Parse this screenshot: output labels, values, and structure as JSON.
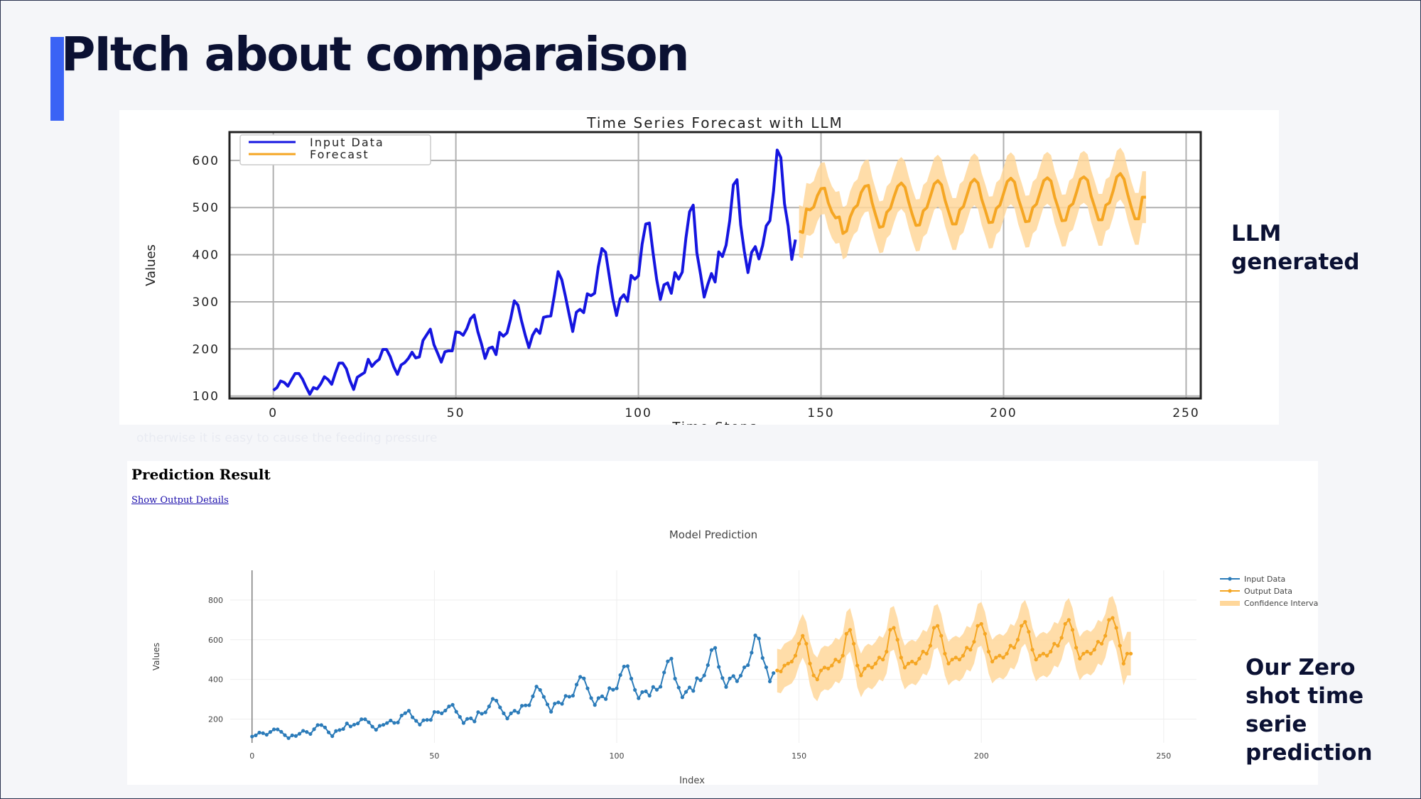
{
  "slide": {
    "title": "PItch about comparaison",
    "colors": {
      "accent": "#3a63f5",
      "title": "#0b1133",
      "background": "#f5f6f9"
    },
    "label_llm": "LLM\ngenerated",
    "label_zero": "Our Zero\nshot time\nserie\nprediction",
    "ghost_text": "otherwise it is easy to cause the feeding pressure"
  },
  "prediction": {
    "heading": "Prediction Result",
    "link": "Show Output Details"
  },
  "chart_data": [
    {
      "type": "line",
      "title": "Time Series Forecast with LLM",
      "xlabel": "Time Steps",
      "ylabel": "Values",
      "xlim": [
        -12,
        254
      ],
      "ylim": [
        95,
        660
      ],
      "xticks": [
        0,
        50,
        100,
        150,
        200,
        250
      ],
      "yticks": [
        100,
        200,
        300,
        400,
        500,
        600
      ],
      "grid": true,
      "legend": "top-left",
      "series": [
        {
          "name": "Input Data",
          "color": "#1515e0",
          "x_start": 0,
          "values": [
            112,
            118,
            132,
            129,
            121,
            135,
            148,
            148,
            136,
            119,
            104,
            118,
            115,
            126,
            141,
            135,
            125,
            149,
            170,
            170,
            158,
            133,
            114,
            140,
            145,
            150,
            178,
            163,
            172,
            178,
            199,
            199,
            184,
            162,
            146,
            166,
            171,
            180,
            193,
            181,
            183,
            218,
            230,
            242,
            209,
            191,
            172,
            194,
            196,
            196,
            236,
            235,
            229,
            243,
            264,
            272,
            237,
            211,
            180,
            201,
            204,
            188,
            235,
            227,
            234,
            264,
            302,
            293,
            259,
            229,
            203,
            229,
            242,
            233,
            267,
            269,
            270,
            315,
            364,
            347,
            312,
            274,
            237,
            278,
            284,
            277,
            317,
            313,
            318,
            374,
            413,
            405,
            355,
            306,
            271,
            306,
            315,
            301,
            356,
            348,
            355,
            422,
            465,
            467,
            404,
            347,
            305,
            336,
            340,
            318,
            362,
            348,
            363,
            435,
            491,
            505,
            404,
            359,
            310,
            337,
            360,
            342,
            406,
            396,
            420,
            472,
            548,
            559,
            463,
            407,
            362,
            405,
            417,
            391,
            419,
            461,
            472,
            535,
            622,
            606,
            508,
            461,
            390,
            432
          ]
        },
        {
          "name": "Forecast",
          "color": "#f5a623",
          "x_start": 144,
          "values": [
            450,
            447,
            497,
            495,
            501,
            525,
            540,
            541,
            510,
            490,
            478,
            480,
            445,
            450,
            480,
            498,
            505,
            532,
            545,
            547,
            510,
            483,
            458,
            460,
            490,
            498,
            523,
            545,
            552,
            543,
            512,
            485,
            462,
            463,
            493,
            500,
            525,
            550,
            557,
            548,
            515,
            490,
            465,
            465,
            495,
            502,
            527,
            552,
            560,
            552,
            518,
            494,
            468,
            469,
            498,
            505,
            530,
            555,
            562,
            554,
            520,
            496,
            470,
            471,
            500,
            507,
            532,
            557,
            563,
            556,
            522,
            498,
            472,
            473,
            502,
            508,
            533,
            560,
            565,
            558,
            524,
            500,
            474,
            474,
            505,
            510,
            535,
            565,
            572,
            560,
            528,
            500,
            476,
            476,
            522,
            522
          ],
          "band_halfwidth": 55
        }
      ]
    },
    {
      "type": "line",
      "title": "Model Prediction",
      "xlabel": "Index",
      "ylabel": "Values",
      "xlim": [
        -6,
        259
      ],
      "ylim": [
        80,
        950
      ],
      "xticks": [
        0,
        50,
        100,
        150,
        200,
        250
      ],
      "yticks": [
        200,
        400,
        600,
        800
      ],
      "grid": true,
      "legend": "top-right",
      "series": [
        {
          "name": "Input Data",
          "color": "#2b7bb9",
          "x_start": 0,
          "values": [
            112,
            118,
            132,
            129,
            121,
            135,
            148,
            148,
            136,
            119,
            104,
            118,
            115,
            126,
            141,
            135,
            125,
            149,
            170,
            170,
            158,
            133,
            114,
            140,
            145,
            150,
            178,
            163,
            172,
            178,
            199,
            199,
            184,
            162,
            146,
            166,
            171,
            180,
            193,
            181,
            183,
            218,
            230,
            242,
            209,
            191,
            172,
            194,
            196,
            196,
            236,
            235,
            229,
            243,
            264,
            272,
            237,
            211,
            180,
            201,
            204,
            188,
            235,
            227,
            234,
            264,
            302,
            293,
            259,
            229,
            203,
            229,
            242,
            233,
            267,
            269,
            270,
            315,
            364,
            347,
            312,
            274,
            237,
            278,
            284,
            277,
            317,
            313,
            318,
            374,
            413,
            405,
            355,
            306,
            271,
            306,
            315,
            301,
            356,
            348,
            355,
            422,
            465,
            467,
            404,
            347,
            305,
            336,
            340,
            318,
            362,
            348,
            363,
            435,
            491,
            505,
            404,
            359,
            310,
            337,
            360,
            342,
            406,
            396,
            420,
            472,
            548,
            559,
            463,
            407,
            362,
            405,
            417,
            391,
            419,
            461,
            472,
            535,
            622,
            606,
            508,
            461,
            390,
            432
          ]
        },
        {
          "name": "Output Data",
          "color": "#f5a623",
          "x_start": 144,
          "values": [
            445,
            440,
            470,
            480,
            490,
            520,
            580,
            620,
            580,
            480,
            420,
            400,
            445,
            460,
            455,
            470,
            500,
            490,
            520,
            630,
            650,
            580,
            470,
            420,
            455,
            470,
            460,
            480,
            510,
            500,
            540,
            650,
            660,
            600,
            510,
            460,
            480,
            490,
            480,
            505,
            540,
            530,
            570,
            660,
            670,
            620,
            530,
            480,
            500,
            510,
            500,
            520,
            560,
            550,
            590,
            670,
            680,
            630,
            540,
            490,
            510,
            520,
            510,
            530,
            570,
            560,
            600,
            670,
            690,
            640,
            550,
            500,
            520,
            530,
            520,
            540,
            580,
            570,
            610,
            680,
            700,
            650,
            560,
            505,
            530,
            540,
            530,
            550,
            590,
            580,
            620,
            700,
            710,
            660,
            570,
            480,
            530,
            530
          ],
          "band_halfwidth": 110
        }
      ]
    }
  ]
}
